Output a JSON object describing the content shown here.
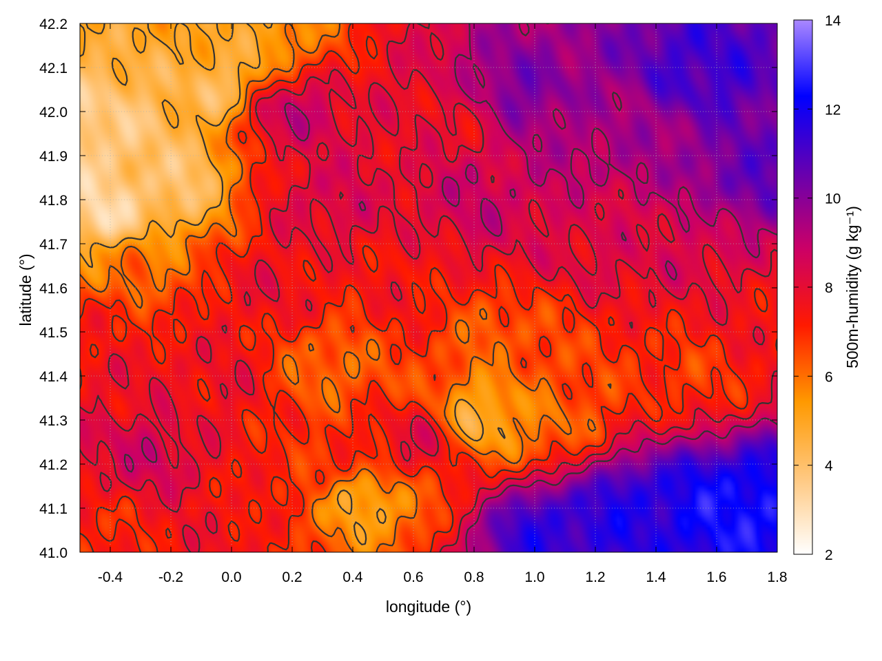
{
  "chart_data": {
    "type": "heatmap",
    "title": "",
    "xlabel": "longitude (°)",
    "ylabel": "latitude (°)",
    "colorbar_label": "500m-humidity (g kg⁻¹)",
    "xlim": [
      -0.5,
      1.8
    ],
    "ylim": [
      41.0,
      42.2
    ],
    "clim": [
      2,
      14
    ],
    "x_ticks": [
      {
        "value": -0.4,
        "label": "-0.4"
      },
      {
        "value": -0.2,
        "label": "-0.2"
      },
      {
        "value": 0.0,
        "label": "0.0"
      },
      {
        "value": 0.2,
        "label": "0.2"
      },
      {
        "value": 0.4,
        "label": "0.4"
      },
      {
        "value": 0.6,
        "label": "0.6"
      },
      {
        "value": 0.8,
        "label": "0.8"
      },
      {
        "value": 1.0,
        "label": "1.0"
      },
      {
        "value": 1.2,
        "label": "1.2"
      },
      {
        "value": 1.4,
        "label": "1.4"
      },
      {
        "value": 1.6,
        "label": "1.6"
      },
      {
        "value": 1.8,
        "label": "1.8"
      }
    ],
    "y_ticks": [
      {
        "value": 41.0,
        "label": "41.0"
      },
      {
        "value": 41.1,
        "label": "41.1"
      },
      {
        "value": 41.2,
        "label": "41.2"
      },
      {
        "value": 41.3,
        "label": "41.3"
      },
      {
        "value": 41.4,
        "label": "41.4"
      },
      {
        "value": 41.5,
        "label": "41.5"
      },
      {
        "value": 41.6,
        "label": "41.6"
      },
      {
        "value": 41.7,
        "label": "41.7"
      },
      {
        "value": 41.8,
        "label": "41.8"
      },
      {
        "value": 41.9,
        "label": "41.9"
      },
      {
        "value": 42.0,
        "label": "42.0"
      },
      {
        "value": 42.1,
        "label": "42.1"
      },
      {
        "value": 42.2,
        "label": "42.2"
      }
    ],
    "colorbar_ticks": [
      {
        "value": 2,
        "label": "2"
      },
      {
        "value": 4,
        "label": "4"
      },
      {
        "value": 6,
        "label": "6"
      },
      {
        "value": 8,
        "label": "8"
      },
      {
        "value": 10,
        "label": "10"
      },
      {
        "value": 12,
        "label": "12"
      },
      {
        "value": 14,
        "label": "14"
      }
    ],
    "colormap": [
      "#ffffff",
      "#ffc880",
      "#ff9900",
      "#ff1a00",
      "#cc0066",
      "#6600b0",
      "#0000ff",
      "#aa88ff"
    ],
    "grid": true,
    "field_samples": [
      {
        "x": -0.45,
        "y": 41.95,
        "v": 3.5
      },
      {
        "x": -0.4,
        "y": 41.78,
        "v": 3.2
      },
      {
        "x": -0.2,
        "y": 41.85,
        "v": 4.0
      },
      {
        "x": -0.05,
        "y": 42.05,
        "v": 4.2
      },
      {
        "x": 0.05,
        "y": 42.15,
        "v": 5.0
      },
      {
        "x": -0.3,
        "y": 41.65,
        "v": 6.0
      },
      {
        "x": -0.4,
        "y": 41.5,
        "v": 7.2
      },
      {
        "x": -0.3,
        "y": 41.4,
        "v": 7.8
      },
      {
        "x": -0.3,
        "y": 41.22,
        "v": 8.6
      },
      {
        "x": -0.45,
        "y": 41.05,
        "v": 7.0
      },
      {
        "x": -0.05,
        "y": 41.05,
        "v": 7.6
      },
      {
        "x": 0.0,
        "y": 41.4,
        "v": 7.7
      },
      {
        "x": 0.1,
        "y": 41.6,
        "v": 7.8
      },
      {
        "x": 0.18,
        "y": 42.0,
        "v": 9.0
      },
      {
        "x": 0.3,
        "y": 41.8,
        "v": 8.4
      },
      {
        "x": 0.3,
        "y": 41.42,
        "v": 6.0
      },
      {
        "x": 0.3,
        "y": 41.2,
        "v": 7.0
      },
      {
        "x": 0.45,
        "y": 41.12,
        "v": 5.0
      },
      {
        "x": 0.55,
        "y": 41.6,
        "v": 7.4
      },
      {
        "x": 0.62,
        "y": 41.25,
        "v": 8.2
      },
      {
        "x": 0.72,
        "y": 41.98,
        "v": 7.8
      },
      {
        "x": 0.82,
        "y": 41.3,
        "v": 4.6
      },
      {
        "x": 0.85,
        "y": 41.8,
        "v": 8.8
      },
      {
        "x": 0.9,
        "y": 41.5,
        "v": 6.3
      },
      {
        "x": 0.95,
        "y": 42.05,
        "v": 10.2
      },
      {
        "x": 1.05,
        "y": 41.3,
        "v": 6.0
      },
      {
        "x": 1.05,
        "y": 41.05,
        "v": 11.6
      },
      {
        "x": 1.15,
        "y": 41.7,
        "v": 8.2
      },
      {
        "x": 1.25,
        "y": 41.95,
        "v": 9.4
      },
      {
        "x": 1.3,
        "y": 41.4,
        "v": 6.8
      },
      {
        "x": 1.35,
        "y": 41.1,
        "v": 11.8
      },
      {
        "x": 1.5,
        "y": 41.7,
        "v": 8.4
      },
      {
        "x": 1.55,
        "y": 42.1,
        "v": 11.2
      },
      {
        "x": 1.55,
        "y": 41.4,
        "v": 6.8
      },
      {
        "x": 1.6,
        "y": 41.1,
        "v": 12.3
      },
      {
        "x": 1.72,
        "y": 41.85,
        "v": 10.6
      },
      {
        "x": 1.75,
        "y": 41.55,
        "v": 7.6
      },
      {
        "x": 1.75,
        "y": 41.1,
        "v": 12.6
      }
    ]
  }
}
